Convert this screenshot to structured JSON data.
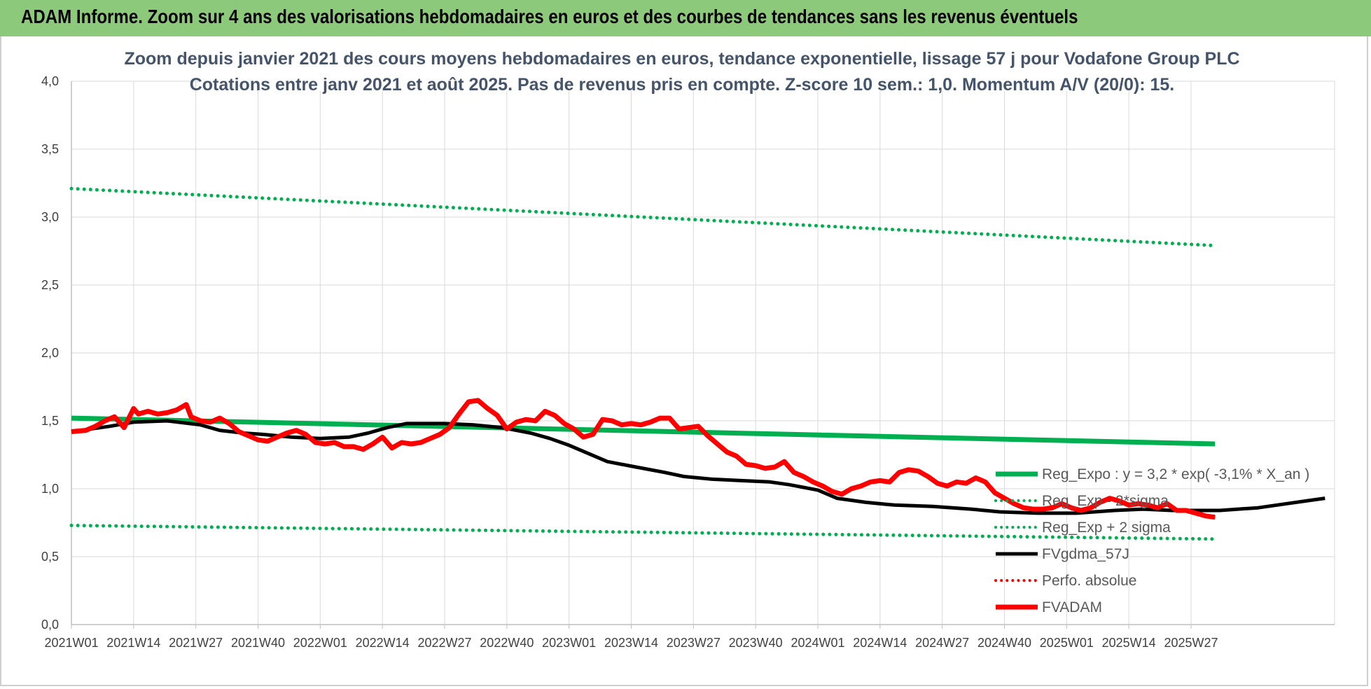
{
  "header": {
    "title": "ADAM Informe. Zoom sur 4 ans des valorisations hebdomadaires en euros et des courbes de tendances sans les revenus éventuels"
  },
  "chart_data": {
    "type": "line",
    "title_line1": "Zoom depuis janvier 2021 des cours moyens hebdomadaires en euros, tendance exponentielle, lissage 57 j pour Vodafone Group PLC",
    "title_line2": "Cotations entre janv 2021 et août 2025.  Pas de revenus pris en compte. Z-score 10 sem.: 1,0. Momentum A/V (20/0): 15.",
    "x_tick_labels": [
      "2021W01",
      "2021W14",
      "2021W27",
      "2021W40",
      "2022W01",
      "2022W14",
      "2022W27",
      "2022W40",
      "2023W01",
      "2023W14",
      "2023W27",
      "2023W40",
      "2024W01",
      "2024W14",
      "2024W27",
      "2024W40",
      "2025W01",
      "2025W14",
      "2025W27"
    ],
    "x_range_weeks": [
      0,
      239
    ],
    "ylim": [
      0,
      4
    ],
    "y_tick_labels": [
      "0,0",
      "0,5",
      "1,0",
      "1,5",
      "2,0",
      "2,5",
      "3,0",
      "3,5",
      "4,0"
    ],
    "grid": true,
    "legend_position": "right-bottom",
    "series": [
      {
        "name": "Reg_Expo : y = 3,2 * exp( -3,1% *  X_an )",
        "color": "#00b050",
        "style": "solid",
        "points": [
          [
            0,
            1.52
          ],
          [
            239,
            1.33
          ]
        ]
      },
      {
        "name": "Reg_Exp - 2*sigma",
        "color": "#00b050",
        "style": "dotted",
        "points": [
          [
            0,
            0.73
          ],
          [
            239,
            0.63
          ]
        ]
      },
      {
        "name": "Reg_Exp + 2 sigma",
        "color": "#00b050",
        "style": "dotted",
        "points": [
          [
            0,
            3.21
          ],
          [
            239,
            2.79
          ]
        ]
      },
      {
        "name": "FVgdma_57J",
        "color": "#000000",
        "style": "solid",
        "points": [
          [
            0,
            1.42
          ],
          [
            8,
            1.46
          ],
          [
            13,
            1.49
          ],
          [
            20,
            1.5
          ],
          [
            27,
            1.47
          ],
          [
            31,
            1.43
          ],
          [
            36,
            1.41
          ],
          [
            40,
            1.4
          ],
          [
            46,
            1.38
          ],
          [
            52,
            1.37
          ],
          [
            58,
            1.38
          ],
          [
            62,
            1.41
          ],
          [
            66,
            1.45
          ],
          [
            70,
            1.48
          ],
          [
            78,
            1.48
          ],
          [
            84,
            1.47
          ],
          [
            90,
            1.45
          ],
          [
            96,
            1.41
          ],
          [
            100,
            1.37
          ],
          [
            104,
            1.32
          ],
          [
            108,
            1.26
          ],
          [
            112,
            1.2
          ],
          [
            118,
            1.16
          ],
          [
            124,
            1.12
          ],
          [
            128,
            1.09
          ],
          [
            134,
            1.07
          ],
          [
            140,
            1.06
          ],
          [
            146,
            1.05
          ],
          [
            150,
            1.03
          ],
          [
            156,
            0.99
          ],
          [
            160,
            0.93
          ],
          [
            166,
            0.9
          ],
          [
            172,
            0.88
          ],
          [
            180,
            0.87
          ],
          [
            188,
            0.85
          ],
          [
            194,
            0.83
          ],
          [
            202,
            0.82
          ],
          [
            210,
            0.82
          ],
          [
            218,
            0.84
          ],
          [
            224,
            0.85
          ],
          [
            230,
            0.84
          ],
          [
            236,
            0.84
          ],
          [
            240,
            0.84
          ],
          [
            248,
            0.86
          ],
          [
            254,
            0.89
          ],
          [
            260,
            0.92
          ],
          [
            262,
            0.93
          ]
        ]
      },
      {
        "name": "Perfo. absolue",
        "color": "#ff0000",
        "style": "dotted",
        "points": []
      },
      {
        "name": "FVADAM",
        "color": "#ff0000",
        "style": "solid",
        "points": [
          [
            0,
            1.42
          ],
          [
            3,
            1.43
          ],
          [
            5,
            1.46
          ],
          [
            7,
            1.5
          ],
          [
            9,
            1.53
          ],
          [
            11,
            1.45
          ],
          [
            13,
            1.59
          ],
          [
            14,
            1.55
          ],
          [
            16,
            1.57
          ],
          [
            18,
            1.55
          ],
          [
            20,
            1.56
          ],
          [
            22,
            1.58
          ],
          [
            24,
            1.62
          ],
          [
            25,
            1.53
          ],
          [
            27,
            1.5
          ],
          [
            29,
            1.49
          ],
          [
            31,
            1.52
          ],
          [
            33,
            1.48
          ],
          [
            35,
            1.42
          ],
          [
            37,
            1.39
          ],
          [
            39,
            1.36
          ],
          [
            41,
            1.35
          ],
          [
            43,
            1.38
          ],
          [
            45,
            1.41
          ],
          [
            47,
            1.43
          ],
          [
            49,
            1.4
          ],
          [
            51,
            1.34
          ],
          [
            53,
            1.33
          ],
          [
            55,
            1.34
          ],
          [
            57,
            1.31
          ],
          [
            59,
            1.31
          ],
          [
            61,
            1.29
          ],
          [
            63,
            1.33
          ],
          [
            65,
            1.38
          ],
          [
            67,
            1.3
          ],
          [
            69,
            1.34
          ],
          [
            71,
            1.33
          ],
          [
            73,
            1.34
          ],
          [
            75,
            1.37
          ],
          [
            77,
            1.4
          ],
          [
            79,
            1.45
          ],
          [
            81,
            1.55
          ],
          [
            83,
            1.64
          ],
          [
            85,
            1.65
          ],
          [
            87,
            1.59
          ],
          [
            89,
            1.54
          ],
          [
            91,
            1.44
          ],
          [
            93,
            1.49
          ],
          [
            95,
            1.51
          ],
          [
            97,
            1.5
          ],
          [
            99,
            1.57
          ],
          [
            101,
            1.54
          ],
          [
            103,
            1.48
          ],
          [
            105,
            1.44
          ],
          [
            107,
            1.38
          ],
          [
            109,
            1.4
          ],
          [
            111,
            1.51
          ],
          [
            113,
            1.5
          ],
          [
            115,
            1.47
          ],
          [
            117,
            1.48
          ],
          [
            119,
            1.47
          ],
          [
            121,
            1.49
          ],
          [
            123,
            1.52
          ],
          [
            125,
            1.52
          ],
          [
            127,
            1.44
          ],
          [
            129,
            1.45
          ],
          [
            131,
            1.46
          ],
          [
            133,
            1.39
          ],
          [
            135,
            1.33
          ],
          [
            137,
            1.27
          ],
          [
            139,
            1.24
          ],
          [
            141,
            1.18
          ],
          [
            143,
            1.17
          ],
          [
            145,
            1.15
          ],
          [
            147,
            1.16
          ],
          [
            149,
            1.2
          ],
          [
            151,
            1.12
          ],
          [
            153,
            1.09
          ],
          [
            155,
            1.05
          ],
          [
            157,
            1.02
          ],
          [
            159,
            0.98
          ],
          [
            161,
            0.96
          ],
          [
            163,
            1.0
          ],
          [
            165,
            1.02
          ],
          [
            167,
            1.05
          ],
          [
            169,
            1.06
          ],
          [
            171,
            1.05
          ],
          [
            173,
            1.12
          ],
          [
            175,
            1.14
          ],
          [
            177,
            1.13
          ],
          [
            179,
            1.09
          ],
          [
            181,
            1.04
          ],
          [
            183,
            1.02
          ],
          [
            185,
            1.05
          ],
          [
            187,
            1.04
          ],
          [
            189,
            1.08
          ],
          [
            191,
            1.05
          ],
          [
            193,
            0.97
          ],
          [
            195,
            0.93
          ],
          [
            197,
            0.89
          ],
          [
            199,
            0.86
          ],
          [
            201,
            0.85
          ],
          [
            203,
            0.85
          ],
          [
            205,
            0.86
          ],
          [
            207,
            0.89
          ],
          [
            209,
            0.86
          ],
          [
            211,
            0.84
          ],
          [
            213,
            0.86
          ],
          [
            215,
            0.9
          ],
          [
            217,
            0.93
          ],
          [
            219,
            0.91
          ],
          [
            221,
            0.88
          ],
          [
            223,
            0.89
          ],
          [
            225,
            0.88
          ],
          [
            227,
            0.86
          ],
          [
            229,
            0.89
          ],
          [
            231,
            0.84
          ],
          [
            233,
            0.84
          ],
          [
            235,
            0.82
          ],
          [
            237,
            0.8
          ],
          [
            239,
            0.79
          ]
        ]
      }
    ]
  }
}
